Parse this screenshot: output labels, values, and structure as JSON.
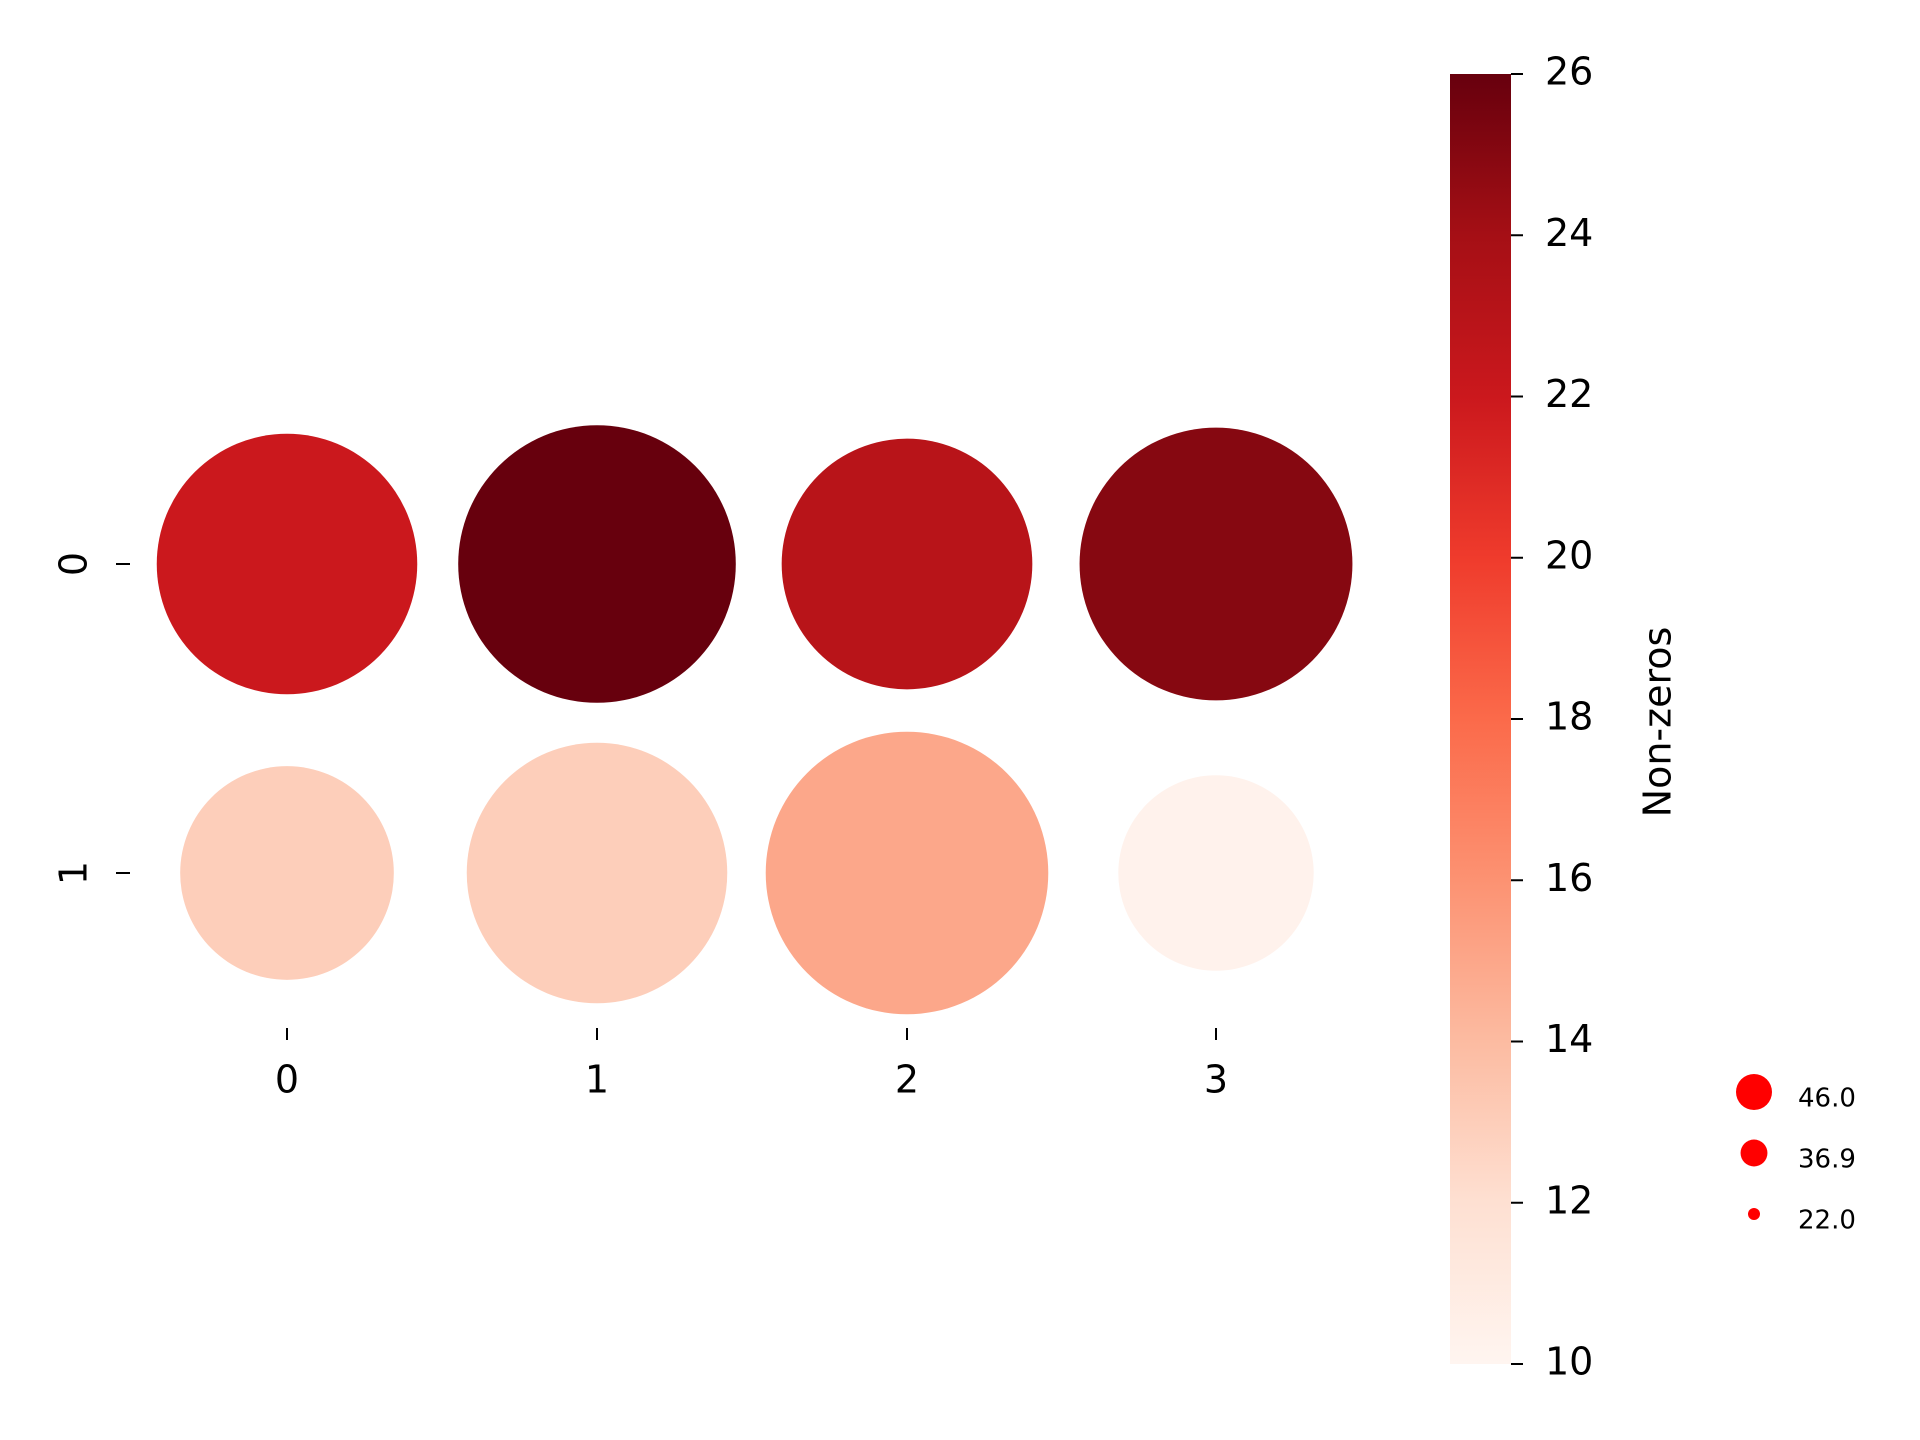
{
  "chart_data": {
    "type": "bubble-matrix",
    "rows": [
      "0",
      "1"
    ],
    "columns": [
      "0",
      "1",
      "2",
      "3"
    ],
    "color_values": [
      [
        22,
        26,
        23,
        25
      ],
      [
        13,
        13,
        15,
        10.3
      ]
    ],
    "size_values": [
      [
        39.1,
        44.4,
        36.2,
        42.9
      ],
      [
        26.3,
        39.1,
        46.0,
        22.0
      ]
    ],
    "colormap": [
      "#fff5f0",
      "#fee0d2",
      "#fcbba1",
      "#fc9272",
      "#fb6a4a",
      "#ef3b2c",
      "#cb181d",
      "#a50f15",
      "#67000d"
    ],
    "clim": [
      10,
      26
    ],
    "cticks": [
      10,
      12,
      14,
      16,
      18,
      20,
      22,
      24,
      26
    ],
    "colorbar_label": "Non-zeros",
    "size_legend": {
      "values": [
        46.0,
        36.9,
        22.0
      ],
      "value_labels": [
        "46.0",
        "36.9",
        "22.0"
      ],
      "color": "#ff0000"
    }
  }
}
